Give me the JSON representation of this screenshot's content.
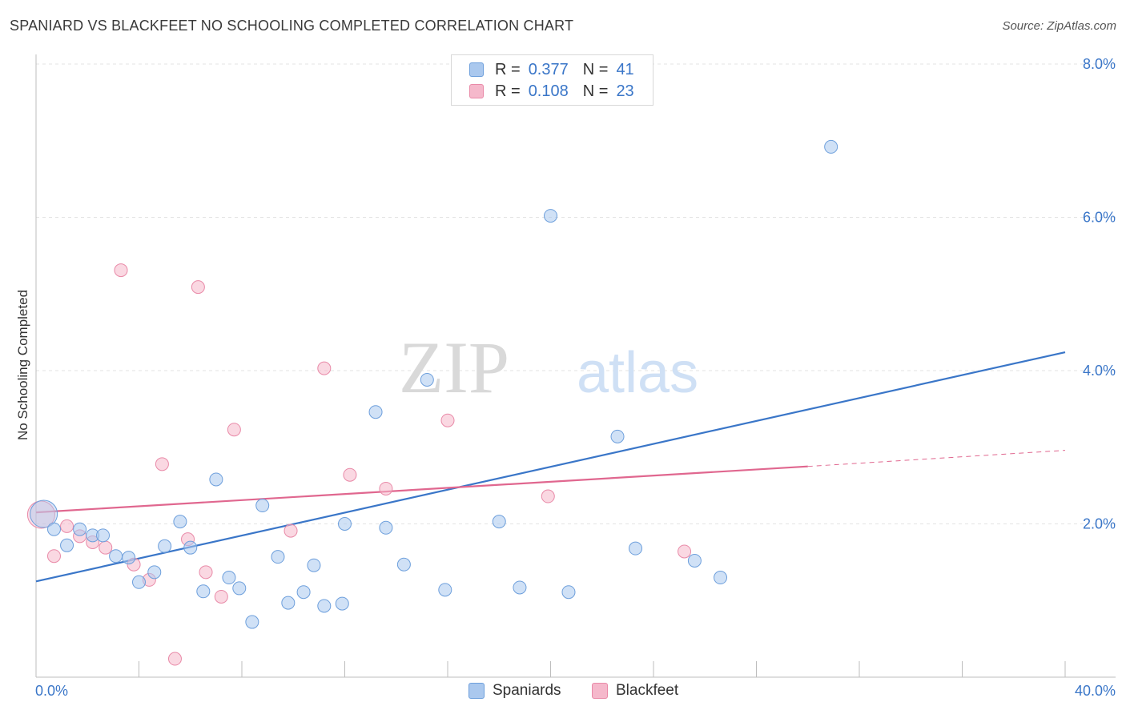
{
  "header": {
    "title": "SPANIARD VS BLACKFEET NO SCHOOLING COMPLETED CORRELATION CHART",
    "source": "Source: ZipAtlas.com"
  },
  "watermark": {
    "zip": "ZIP",
    "atlas": "atlas"
  },
  "legend": {
    "rows": [
      {
        "r_label": "R =",
        "r_value": "0.377",
        "n_label": "N =",
        "n_value": "41",
        "color": "#aac8ee"
      },
      {
        "r_label": "R =",
        "r_value": "0.108",
        "n_label": "N =",
        "n_value": "23",
        "color": "#f5b8cb"
      }
    ]
  },
  "bottom_legend": {
    "spaniards": "Spaniards",
    "blackfeet": "Blackfeet"
  },
  "colors": {
    "spaniards_fill": "#aac8ee",
    "spaniards_stroke": "#6d9fdc",
    "spaniards_line": "#3a76c8",
    "blackfeet_fill": "#f5b8cb",
    "blackfeet_stroke": "#e98aa8",
    "blackfeet_line": "#e0678f",
    "tick_label": "#3a76c8"
  },
  "chart_data": {
    "type": "scatter",
    "title": "SPANIARD VS BLACKFEET NO SCHOOLING COMPLETED CORRELATION CHART",
    "xlabel": "",
    "ylabel": "No Schooling Completed",
    "xlim": [
      0,
      40
    ],
    "ylim": [
      0,
      8.3
    ],
    "x_tick_labels": [
      "0.0%",
      "40.0%"
    ],
    "y_ticks": [
      2,
      4,
      6,
      8
    ],
    "y_tick_labels": [
      "2.0%",
      "4.0%",
      "6.0%",
      "8.0%"
    ],
    "grid": "horizontal dashed",
    "legend_position": "top-center",
    "series": [
      {
        "name": "Spaniards",
        "R": 0.377,
        "N": 41,
        "trend": {
          "x": [
            0,
            40
          ],
          "y": [
            1.25,
            4.24
          ]
        },
        "points": [
          {
            "x": 0.3,
            "y": 2.13,
            "big": true
          },
          {
            "x": 0.7,
            "y": 1.93
          },
          {
            "x": 1.2,
            "y": 1.72
          },
          {
            "x": 1.7,
            "y": 1.93
          },
          {
            "x": 2.2,
            "y": 1.85
          },
          {
            "x": 2.6,
            "y": 1.85
          },
          {
            "x": 3.1,
            "y": 1.58
          },
          {
            "x": 3.6,
            "y": 1.56
          },
          {
            "x": 4.0,
            "y": 1.24
          },
          {
            "x": 4.6,
            "y": 1.37
          },
          {
            "x": 5.0,
            "y": 1.71
          },
          {
            "x": 5.6,
            "y": 2.03
          },
          {
            "x": 6.0,
            "y": 1.69
          },
          {
            "x": 6.5,
            "y": 1.12
          },
          {
            "x": 7.0,
            "y": 2.58
          },
          {
            "x": 7.5,
            "y": 1.3
          },
          {
            "x": 7.9,
            "y": 1.16
          },
          {
            "x": 8.4,
            "y": 0.72
          },
          {
            "x": 8.8,
            "y": 2.24
          },
          {
            "x": 9.4,
            "y": 1.57
          },
          {
            "x": 9.8,
            "y": 0.97
          },
          {
            "x": 10.4,
            "y": 1.11
          },
          {
            "x": 10.8,
            "y": 1.46
          },
          {
            "x": 11.2,
            "y": 0.93
          },
          {
            "x": 11.9,
            "y": 0.96
          },
          {
            "x": 12.0,
            "y": 2.0
          },
          {
            "x": 13.2,
            "y": 3.46
          },
          {
            "x": 13.6,
            "y": 1.95
          },
          {
            "x": 14.3,
            "y": 1.47
          },
          {
            "x": 15.2,
            "y": 3.88
          },
          {
            "x": 15.9,
            "y": 1.14
          },
          {
            "x": 16.5,
            "y": 7.91
          },
          {
            "x": 18.0,
            "y": 2.03
          },
          {
            "x": 18.8,
            "y": 1.17
          },
          {
            "x": 20.0,
            "y": 6.02
          },
          {
            "x": 20.7,
            "y": 1.11
          },
          {
            "x": 22.6,
            "y": 3.14
          },
          {
            "x": 23.3,
            "y": 1.68
          },
          {
            "x": 25.6,
            "y": 1.52
          },
          {
            "x": 26.6,
            "y": 1.3
          },
          {
            "x": 30.9,
            "y": 6.92
          }
        ]
      },
      {
        "name": "Blackfeet",
        "R": 0.108,
        "N": 23,
        "trend": {
          "x": [
            0,
            30
          ],
          "y": [
            2.15,
            2.75
          ]
        },
        "trend_dashed": {
          "x": [
            30,
            40
          ],
          "y": [
            2.75,
            2.96
          ]
        },
        "points": [
          {
            "x": 0.2,
            "y": 2.12,
            "big": true
          },
          {
            "x": 0.7,
            "y": 1.58
          },
          {
            "x": 1.2,
            "y": 1.97
          },
          {
            "x": 1.7,
            "y": 1.84
          },
          {
            "x": 2.2,
            "y": 1.76
          },
          {
            "x": 2.7,
            "y": 1.69
          },
          {
            "x": 3.3,
            "y": 5.31
          },
          {
            "x": 3.8,
            "y": 1.47
          },
          {
            "x": 4.4,
            "y": 1.27
          },
          {
            "x": 4.9,
            "y": 2.78
          },
          {
            "x": 5.4,
            "y": 0.24
          },
          {
            "x": 5.9,
            "y": 1.8
          },
          {
            "x": 6.3,
            "y": 5.09
          },
          {
            "x": 6.6,
            "y": 1.37
          },
          {
            "x": 7.2,
            "y": 1.05
          },
          {
            "x": 7.7,
            "y": 3.23
          },
          {
            "x": 9.9,
            "y": 1.91
          },
          {
            "x": 11.2,
            "y": 4.03
          },
          {
            "x": 12.2,
            "y": 2.64
          },
          {
            "x": 13.6,
            "y": 2.46
          },
          {
            "x": 16.0,
            "y": 3.35
          },
          {
            "x": 19.9,
            "y": 2.36
          },
          {
            "x": 25.2,
            "y": 1.64
          }
        ]
      }
    ]
  }
}
